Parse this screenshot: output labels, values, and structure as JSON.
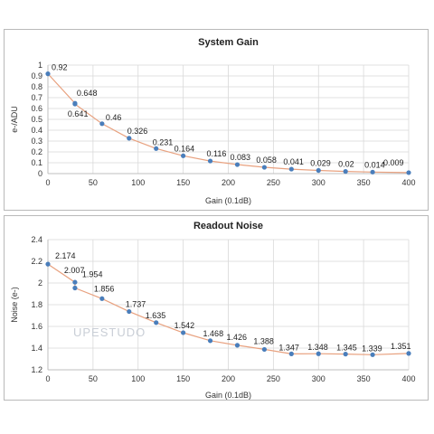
{
  "colors": {
    "line": "#e8a17f",
    "marker": "#4a7ebb",
    "grid": "#d9d9d9"
  },
  "watermark": "UPESTUDO",
  "chart_data": [
    {
      "type": "line",
      "title": "System Gain",
      "xlabel": "Gain (0.1dB)",
      "ylabel": "e-/ADU",
      "xlim": [
        0,
        400
      ],
      "ylim": [
        0,
        1
      ],
      "xticks": [
        0,
        50,
        100,
        150,
        200,
        250,
        300,
        350,
        400
      ],
      "yticks": [
        0,
        0.1,
        0.2,
        0.3,
        0.4,
        0.5,
        0.6,
        0.7,
        0.8,
        0.9,
        1
      ],
      "grid": true,
      "points": [
        {
          "x": 0,
          "y": 0.92,
          "label": "0.92"
        },
        {
          "x": 30,
          "y": 0.648,
          "label": "0.648"
        },
        {
          "x": 30,
          "y": 0.641,
          "label": "0.641"
        },
        {
          "x": 60,
          "y": 0.46,
          "label": "0.46"
        },
        {
          "x": 90,
          "y": 0.326,
          "label": "0.326"
        },
        {
          "x": 120,
          "y": 0.231,
          "label": "0.231"
        },
        {
          "x": 150,
          "y": 0.164,
          "label": "0.164"
        },
        {
          "x": 180,
          "y": 0.116,
          "label": "0.116"
        },
        {
          "x": 210,
          "y": 0.083,
          "label": "0.083"
        },
        {
          "x": 240,
          "y": 0.058,
          "label": "0.058"
        },
        {
          "x": 270,
          "y": 0.041,
          "label": "0.041"
        },
        {
          "x": 300,
          "y": 0.029,
          "label": "0.029"
        },
        {
          "x": 330,
          "y": 0.02,
          "label": "0.02"
        },
        {
          "x": 360,
          "y": 0.014,
          "label": "0.014"
        },
        {
          "x": 400,
          "y": 0.009,
          "label": "0.009"
        }
      ]
    },
    {
      "type": "line",
      "title": "Readout Noise",
      "xlabel": "Gain (0.1dB)",
      "ylabel": "Noise (e-)",
      "xlim": [
        0,
        400
      ],
      "ylim": [
        1.2,
        2.4
      ],
      "xticks": [
        0,
        50,
        100,
        150,
        200,
        250,
        300,
        350,
        400
      ],
      "yticks": [
        1.2,
        1.4,
        1.6,
        1.8,
        2,
        2.2,
        2.4
      ],
      "grid": true,
      "points": [
        {
          "x": 0,
          "y": 2.174,
          "label": "2.174"
        },
        {
          "x": 30,
          "y": 2.007,
          "label": "2.007"
        },
        {
          "x": 30,
          "y": 1.954,
          "label": "1.954"
        },
        {
          "x": 60,
          "y": 1.856,
          "label": "1.856"
        },
        {
          "x": 90,
          "y": 1.737,
          "label": "1.737"
        },
        {
          "x": 120,
          "y": 1.635,
          "label": "1.635"
        },
        {
          "x": 150,
          "y": 1.542,
          "label": "1.542"
        },
        {
          "x": 180,
          "y": 1.468,
          "label": "1.468"
        },
        {
          "x": 210,
          "y": 1.426,
          "label": "1.426"
        },
        {
          "x": 240,
          "y": 1.388,
          "label": "1.388"
        },
        {
          "x": 270,
          "y": 1.347,
          "label": "1.347"
        },
        {
          "x": 300,
          "y": 1.348,
          "label": "1.348"
        },
        {
          "x": 330,
          "y": 1.345,
          "label": "1.345"
        },
        {
          "x": 360,
          "y": 1.339,
          "label": "1.339"
        },
        {
          "x": 400,
          "y": 1.351,
          "label": "1.351"
        }
      ]
    }
  ]
}
